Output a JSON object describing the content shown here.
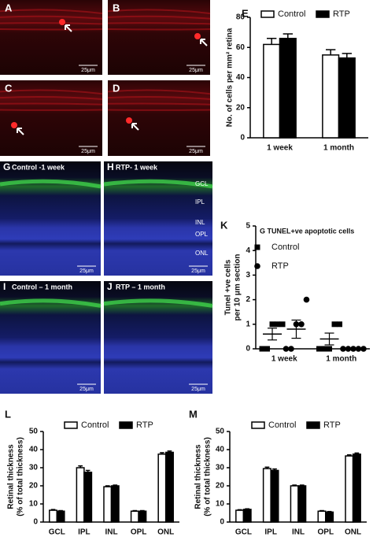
{
  "panels": [
    {
      "label": "A",
      "scale": "25μm"
    },
    {
      "label": "B",
      "scale": "25μm"
    },
    {
      "label": "C",
      "scale": "25μm"
    },
    {
      "label": "D",
      "scale": "25μm"
    },
    {
      "label": "G",
      "caption": "Control -1 week",
      "scale": "25μm"
    },
    {
      "label": "H",
      "caption": "RTP- 1 week",
      "scale": "25μm",
      "layers": [
        "GCL",
        "IPL",
        "INL",
        "OPL",
        "ONL"
      ]
    },
    {
      "label": "I",
      "caption": "Control – 1 month",
      "scale": "25μm"
    },
    {
      "label": "J",
      "caption": "RTP – 1 month",
      "scale": "25μm"
    }
  ],
  "chart_data": [
    {
      "type": "bar",
      "panel": "E",
      "ylabel": [
        "No. of cells per mm² retina"
      ],
      "categories": [
        "1 week",
        "1 month"
      ],
      "series": [
        {
          "name": "Control",
          "color": "#ffffff",
          "values": [
            62,
            55
          ],
          "errors": [
            4,
            3.5
          ]
        },
        {
          "name": "RTP",
          "color": "#000000",
          "values": [
            66,
            53
          ],
          "errors": [
            3,
            3
          ]
        }
      ],
      "ylim": [
        0,
        80
      ],
      "yticks": [
        0,
        20,
        40,
        60,
        80
      ]
    },
    {
      "type": "dot",
      "panel": "K",
      "title": "G TUNEL+ve apoptotic cells",
      "ylabel": [
        "Tunel +ve cells",
        "per 10 μm section"
      ],
      "categories": [
        "1 week",
        "1 month"
      ],
      "series": [
        {
          "name": "Control",
          "marker": "square",
          "color": "#000000",
          "points": [
            [
              0,
              0,
              1,
              1,
              1
            ],
            [
              0,
              0,
              0,
              1,
              1
            ]
          ],
          "mean": [
            0.6,
            0.4
          ],
          "errors": [
            0.24,
            0.24
          ]
        },
        {
          "name": "RTP",
          "marker": "circle",
          "color": "#000000",
          "points": [
            [
              0,
              0,
              1,
              1,
              2
            ],
            [
              0,
              0,
              0,
              0,
              0
            ]
          ],
          "mean": [
            0.8,
            0
          ],
          "errors": [
            0.37,
            0
          ]
        }
      ],
      "ylim": [
        0,
        5
      ],
      "yticks": [
        0,
        1,
        2,
        3,
        4,
        5
      ]
    },
    {
      "type": "bar",
      "panel": "L",
      "ylabel": [
        "Retinal thickness",
        "(% of total thickness)"
      ],
      "categories": [
        "GCL",
        "IPL",
        "INL",
        "OPL",
        "ONL"
      ],
      "series": [
        {
          "name": "Control",
          "color": "#ffffff",
          "values": [
            6.5,
            30,
            19.5,
            6,
            37.5
          ],
          "errors": [
            0.4,
            1,
            0.5,
            0.3,
            0.8
          ]
        },
        {
          "name": "RTP",
          "color": "#000000",
          "values": [
            6,
            27.5,
            20,
            6,
            38.5
          ],
          "errors": [
            0.3,
            1,
            0.4,
            0.3,
            0.7
          ]
        }
      ],
      "ylim": [
        0,
        50
      ],
      "yticks": [
        0,
        10,
        20,
        30,
        40,
        50
      ]
    },
    {
      "type": "bar",
      "panel": "M",
      "ylabel": [
        "Retinal thickness",
        "(% of total thickness)"
      ],
      "categories": [
        "GCL",
        "IPL",
        "INL",
        "OPL",
        "ONL"
      ],
      "series": [
        {
          "name": "Control",
          "color": "#ffffff",
          "values": [
            6.5,
            29.5,
            20,
            6,
            36.5
          ],
          "errors": [
            0.3,
            0.8,
            0.4,
            0.3,
            0.6
          ]
        },
        {
          "name": "RTP",
          "color": "#000000",
          "values": [
            7,
            28.5,
            20,
            5.5,
            37.5
          ],
          "errors": [
            0.3,
            0.8,
            0.4,
            0.3,
            0.6
          ]
        }
      ],
      "ylim": [
        0,
        50
      ],
      "yticks": [
        0,
        10,
        20,
        30,
        40,
        50
      ]
    }
  ]
}
